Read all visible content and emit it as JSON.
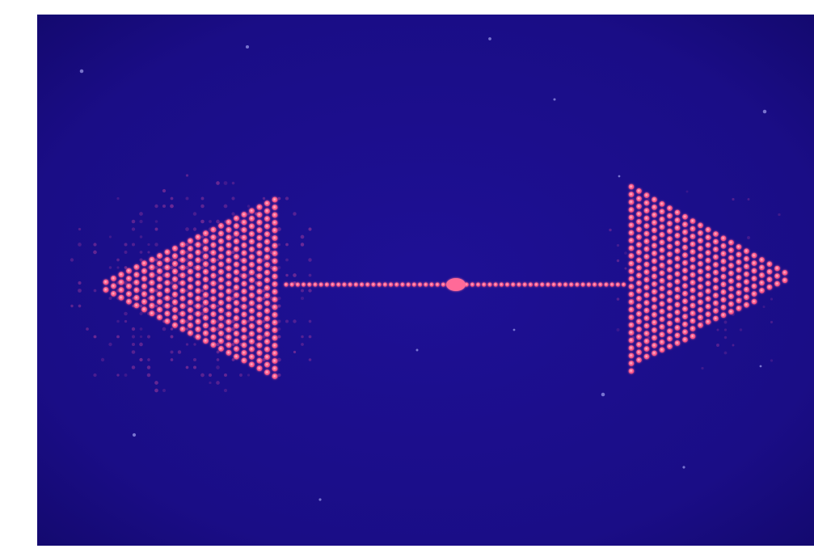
{
  "image": {
    "subject": "dot-matrix-double-arrow",
    "colors": {
      "background": "#1c0f8a",
      "background_edge": "#12086a",
      "dot": "#ff5a8a",
      "dot_core": "#ffb0c8",
      "haze": "#a03a9a"
    }
  }
}
